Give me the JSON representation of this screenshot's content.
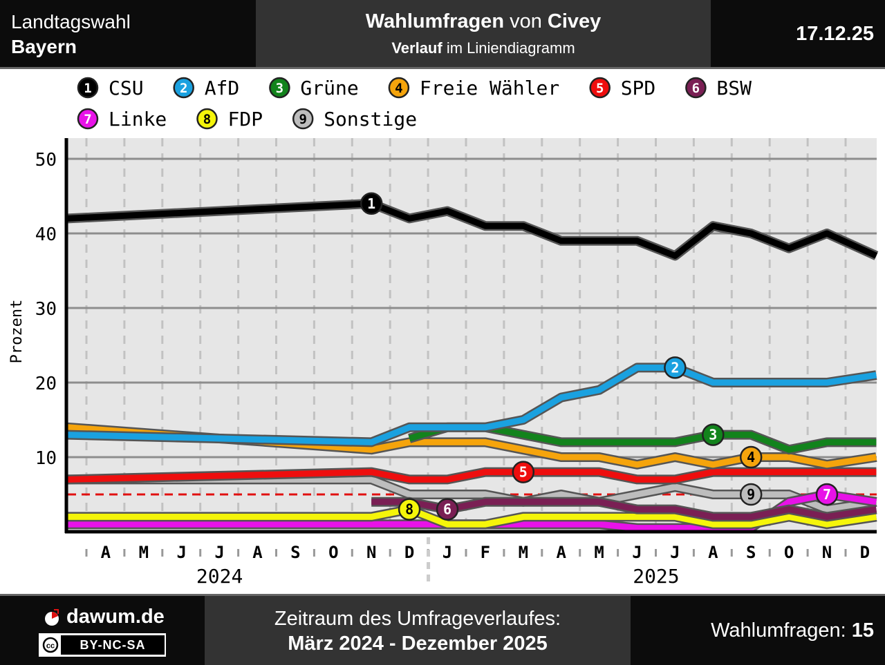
{
  "header": {
    "left_line1": "Landtagswahl",
    "left_line2": "Bayern",
    "title_bold1": "Wahlumfragen",
    "title_mid": " von ",
    "title_bold2": "Civey",
    "subtitle_bold": "Verlauf",
    "subtitle_rest": " im Liniendiagramm",
    "date": "17.12.25"
  },
  "footer": {
    "site": "dawum.de",
    "license": "BY-NC-SA",
    "license_cc": "cc",
    "period_label": "Zeitraum des Umfrageverlaufes:",
    "period_value": "März 2024 - Dezember 2025",
    "count_label": "Wahlumfragen: ",
    "count_value": "15"
  },
  "colors": {
    "plot_bg": "#e6e6e6",
    "threshold": "#e11010",
    "header_bg": "#0c0c0c",
    "header_mid_bg": "#333333"
  },
  "chart_data": {
    "type": "line",
    "ylabel": "Prozent",
    "ylim": [
      0,
      53
    ],
    "yticks": [
      10,
      20,
      30,
      40,
      50
    ],
    "xlim": [
      0,
      21.6
    ],
    "threshold": 5,
    "month_labels": [
      "A",
      "M",
      "J",
      "J",
      "A",
      "S",
      "O",
      "N",
      "D",
      "J",
      "F",
      "M",
      "A",
      "M",
      "J",
      "J",
      "A",
      "S",
      "O",
      "N",
      "D"
    ],
    "year_labels": [
      {
        "label": "2024",
        "x": 4.0
      },
      {
        "label": "2025",
        "x": 15.5
      }
    ],
    "year_divider_x": 9.5,
    "legend_placement": "top",
    "grid": true,
    "series": [
      {
        "id": 1,
        "name": "CSU",
        "color": "#000000",
        "badge_x": 8,
        "points": [
          [
            0,
            42
          ],
          [
            8,
            44
          ],
          [
            9,
            42
          ],
          [
            10,
            43
          ],
          [
            11,
            41
          ],
          [
            12,
            41
          ],
          [
            13,
            39
          ],
          [
            14,
            39
          ],
          [
            15,
            39
          ],
          [
            16,
            37
          ],
          [
            17,
            41
          ],
          [
            18,
            40
          ],
          [
            19,
            38
          ],
          [
            20,
            40
          ],
          [
            21.3,
            37
          ]
        ]
      },
      {
        "id": 2,
        "name": "AfD",
        "color": "#1aa1e0",
        "badge_x": 16,
        "points": [
          [
            0,
            13
          ],
          [
            8,
            12
          ],
          [
            9,
            14
          ],
          [
            10,
            14
          ],
          [
            11,
            14
          ],
          [
            12,
            15
          ],
          [
            13,
            18
          ],
          [
            14,
            19
          ],
          [
            15,
            22
          ],
          [
            16,
            22
          ],
          [
            17,
            20
          ],
          [
            18,
            20
          ],
          [
            19,
            20
          ],
          [
            20,
            20
          ],
          [
            21.3,
            21
          ]
        ]
      },
      {
        "id": 3,
        "name": "Grüne",
        "color": "#12831c",
        "badge_x": 17,
        "points": [
          [
            9,
            12.5
          ],
          [
            10,
            14
          ],
          [
            11,
            14
          ],
          [
            12,
            13
          ],
          [
            13,
            12
          ],
          [
            14,
            12
          ],
          [
            15,
            12
          ],
          [
            16,
            12
          ],
          [
            17,
            13
          ],
          [
            18,
            13
          ],
          [
            19,
            11
          ],
          [
            20,
            12
          ],
          [
            21.3,
            12
          ]
        ]
      },
      {
        "id": 4,
        "name": "Freie Wähler",
        "color": "#f5a40c",
        "badge_x": 18,
        "points": [
          [
            0,
            14
          ],
          [
            8,
            11
          ],
          [
            9,
            12
          ],
          [
            10,
            12
          ],
          [
            11,
            12
          ],
          [
            12,
            11
          ],
          [
            13,
            10
          ],
          [
            14,
            10
          ],
          [
            15,
            9
          ],
          [
            16,
            10
          ],
          [
            17,
            9
          ],
          [
            18,
            10
          ],
          [
            19,
            10
          ],
          [
            20,
            9
          ],
          [
            21.3,
            10
          ]
        ]
      },
      {
        "id": 5,
        "name": "SPD",
        "color": "#ee0e0e",
        "badge_x": 12,
        "points": [
          [
            0,
            7
          ],
          [
            8,
            8
          ],
          [
            9,
            7
          ],
          [
            10,
            7
          ],
          [
            11,
            8
          ],
          [
            12,
            8
          ],
          [
            13,
            8
          ],
          [
            14,
            8
          ],
          [
            15,
            7
          ],
          [
            16,
            7
          ],
          [
            17,
            8
          ],
          [
            18,
            8
          ],
          [
            19,
            8
          ],
          [
            20,
            8
          ],
          [
            21.3,
            8
          ]
        ]
      },
      {
        "id": 6,
        "name": "BSW",
        "color": "#7a1f54",
        "badge_x": 10,
        "points": [
          [
            8,
            4
          ],
          [
            9,
            4
          ],
          [
            10,
            3
          ],
          [
            11,
            4
          ],
          [
            12,
            4
          ],
          [
            13,
            4
          ],
          [
            14,
            4
          ],
          [
            15,
            3
          ],
          [
            16,
            3
          ],
          [
            17,
            2
          ],
          [
            18,
            2
          ],
          [
            19,
            3
          ],
          [
            20,
            2
          ],
          [
            21.3,
            3
          ]
        ]
      },
      {
        "id": 7,
        "name": "Linke",
        "color": "#e812e8",
        "badge_x": 20,
        "points": [
          [
            0,
            1
          ],
          [
            8,
            1
          ],
          [
            9,
            1
          ],
          [
            10,
            1
          ],
          [
            11,
            1
          ],
          [
            12,
            1
          ],
          [
            13,
            1
          ],
          [
            14,
            1
          ],
          [
            15,
            0.5
          ],
          [
            16,
            0.5
          ],
          [
            17,
            0.5
          ],
          [
            18,
            0.5
          ],
          [
            19,
            4
          ],
          [
            20,
            5
          ],
          [
            21.3,
            4
          ]
        ]
      },
      {
        "id": 8,
        "name": "FDP",
        "color": "#f5f50a",
        "badge_x": 9,
        "points": [
          [
            0,
            2
          ],
          [
            8,
            2
          ],
          [
            9,
            3
          ],
          [
            10,
            1
          ],
          [
            11,
            1
          ],
          [
            12,
            2
          ],
          [
            13,
            2
          ],
          [
            14,
            2
          ],
          [
            15,
            2
          ],
          [
            16,
            2
          ],
          [
            17,
            1
          ],
          [
            18,
            1
          ],
          [
            19,
            2
          ],
          [
            20,
            1
          ],
          [
            21.3,
            2
          ]
        ]
      },
      {
        "id": 9,
        "name": "Sonstige",
        "color": "#bdbdbd",
        "badge_x": 18,
        "points": [
          [
            0,
            7
          ],
          [
            8,
            7
          ],
          [
            9,
            5
          ],
          [
            10,
            5
          ],
          [
            11,
            5
          ],
          [
            12,
            4
          ],
          [
            13,
            5
          ],
          [
            14,
            4
          ],
          [
            15,
            5
          ],
          [
            16,
            6
          ],
          [
            17,
            5
          ],
          [
            18,
            5
          ],
          [
            19,
            5
          ],
          [
            20,
            3
          ],
          [
            21.3,
            4
          ]
        ]
      }
    ]
  }
}
